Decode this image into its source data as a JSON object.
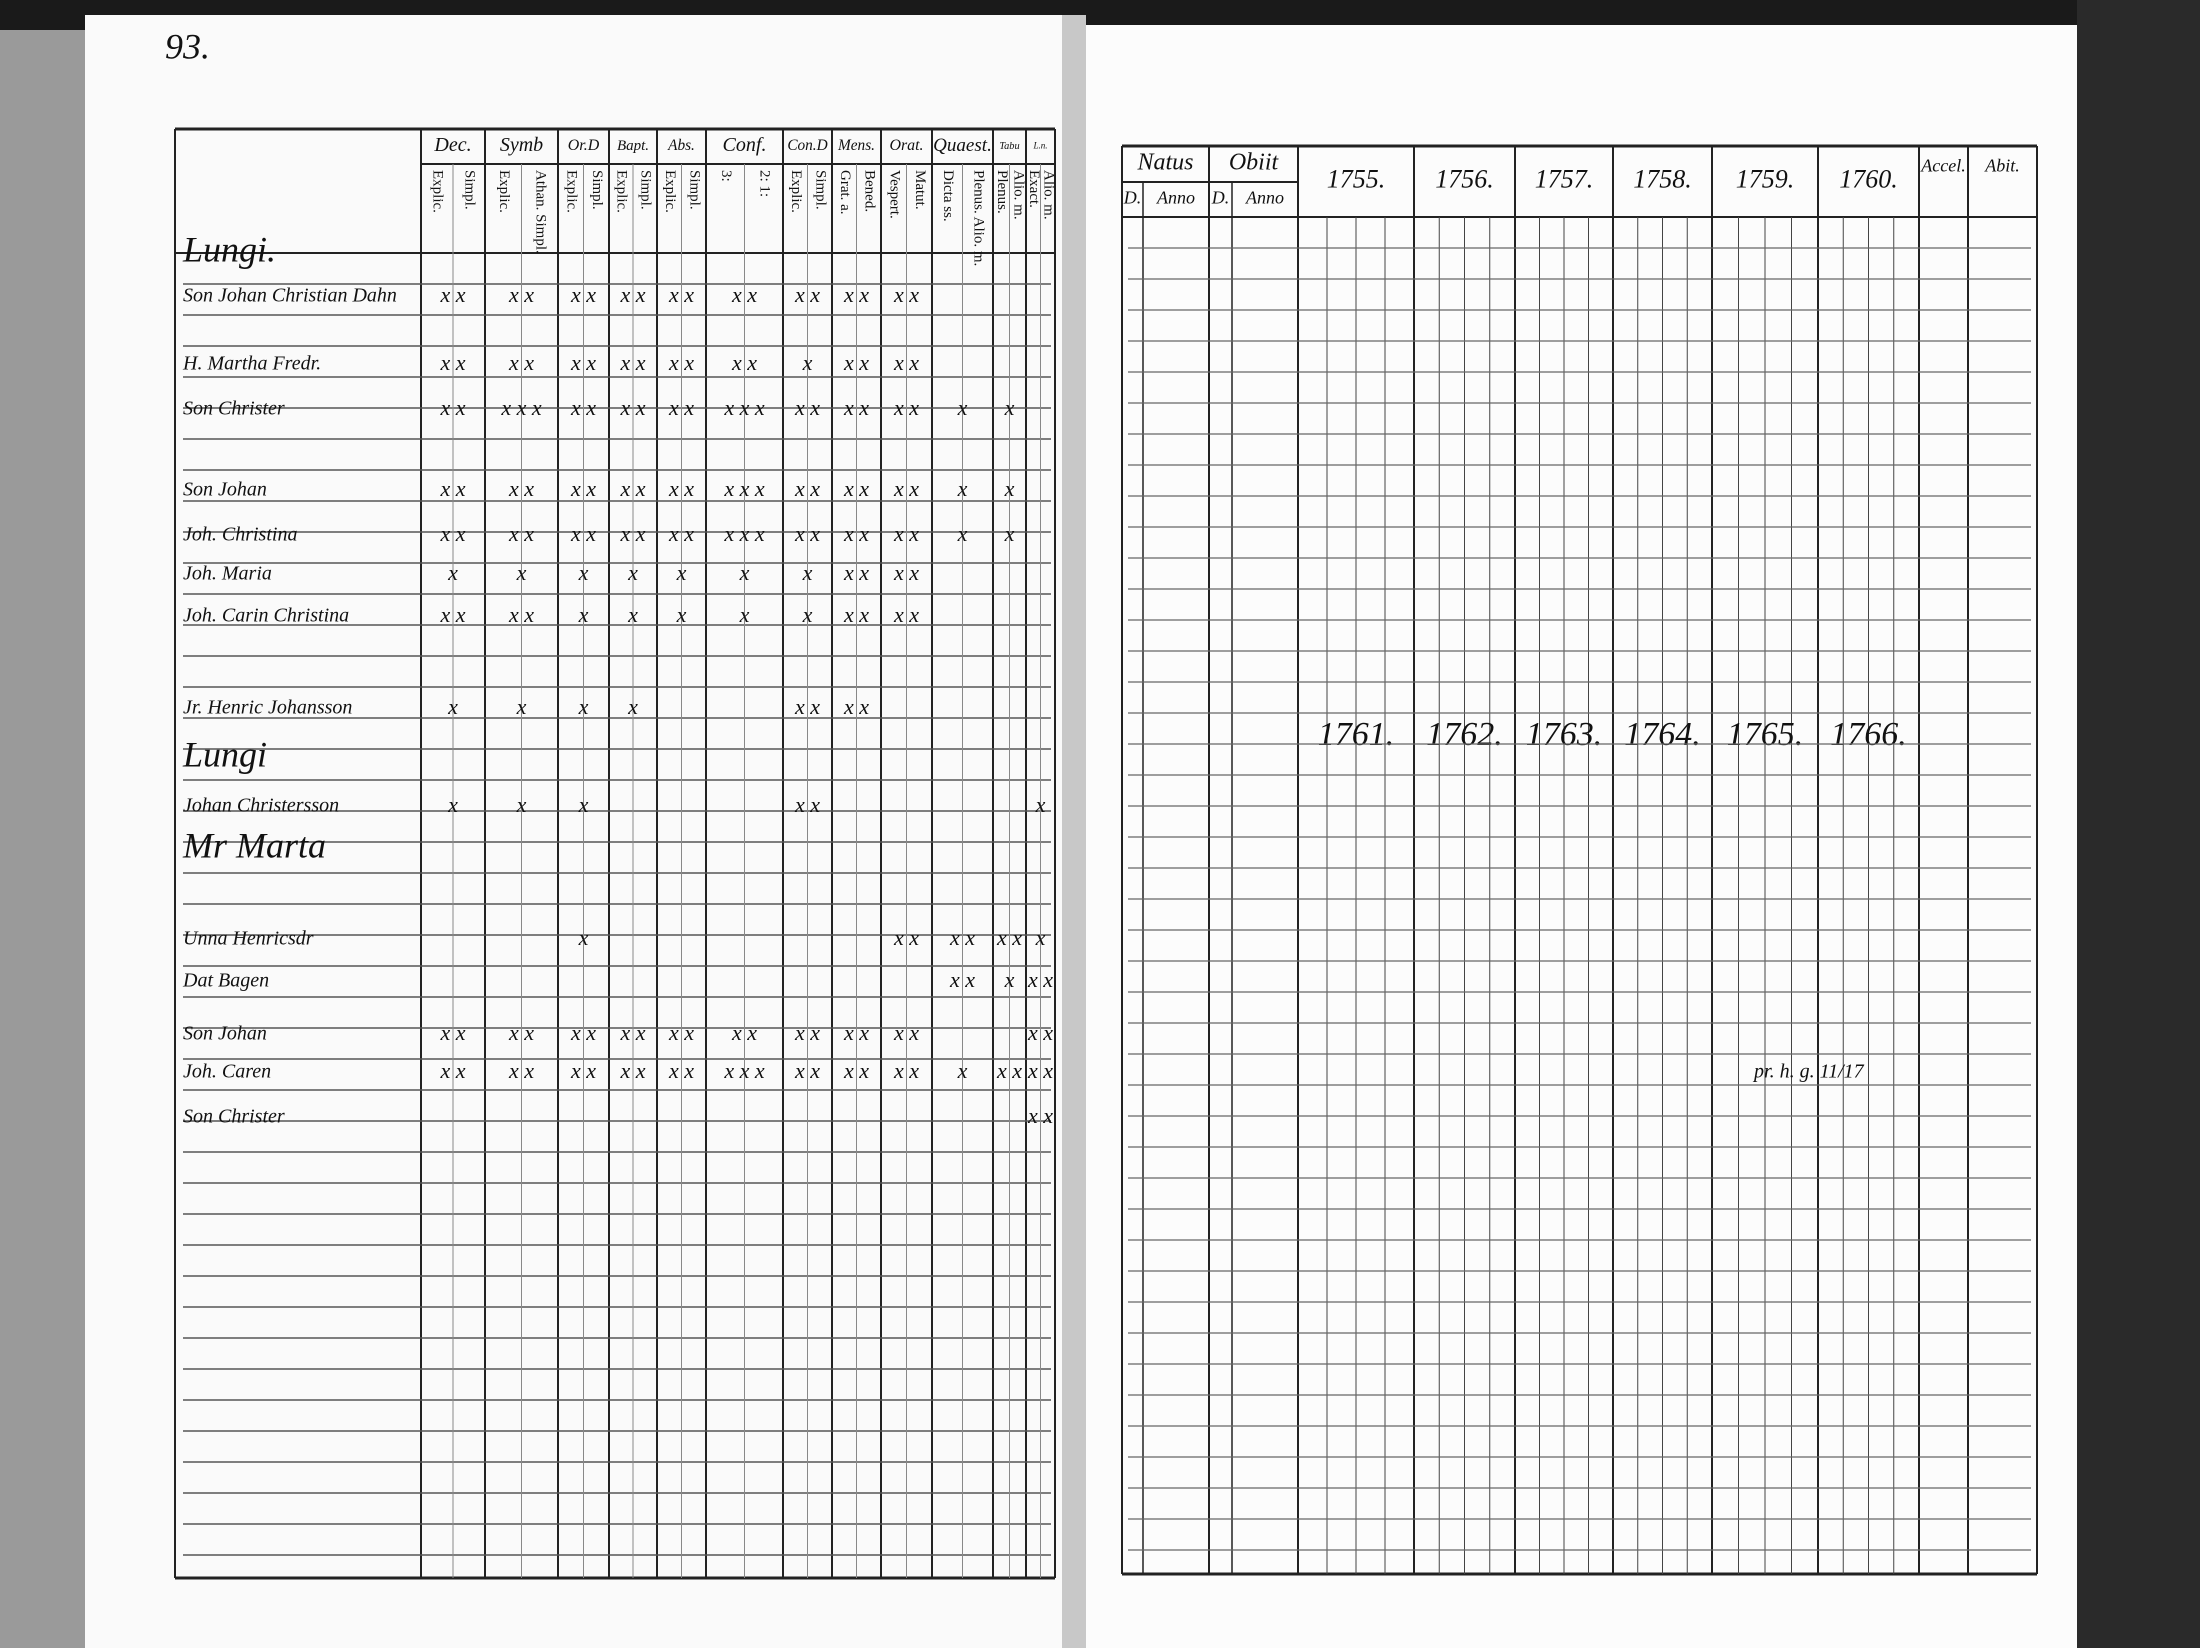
{
  "left_page": {
    "page_number": "93.",
    "headers": [
      {
        "label": "Dec.",
        "sub": [
          "Explic.",
          "Simpl."
        ]
      },
      {
        "label": "Symb",
        "sub": [
          "Explic.",
          "Athan. Simpl."
        ]
      },
      {
        "label": "Or.D",
        "sub": [
          "Explic.",
          "Simpl."
        ]
      },
      {
        "label": "Bapt.",
        "sub": [
          "Explic.",
          "Simpl."
        ]
      },
      {
        "label": "Abs.",
        "sub": [
          "Explic.",
          "Simpl."
        ]
      },
      {
        "label": "Conf.",
        "sub": [
          "3:",
          "2: 1:"
        ]
      },
      {
        "label": "Con.D",
        "sub": [
          "Explic.",
          "Simpl."
        ]
      },
      {
        "label": "Mens.",
        "sub": [
          "Grat. a.",
          "Bened."
        ]
      },
      {
        "label": "Orat.",
        "sub": [
          "Vespert.",
          "Matut."
        ]
      },
      {
        "label": "Quaest.",
        "sub": [
          "Dicta ss.",
          "Plenus. Alio. m."
        ]
      },
      {
        "label": "Tabu",
        "sub": [
          "Plenus.",
          "Alio. m."
        ]
      },
      {
        "label": "L.n.",
        "sub": [
          "Exact.",
          "Alio. m."
        ]
      }
    ],
    "rows": [
      {
        "name": "Lungi.",
        "marks": [
          null,
          null,
          null,
          null,
          null,
          null,
          null,
          null,
          null,
          null,
          null,
          null
        ]
      },
      {
        "name": "Son Johan Christian Dahn",
        "marks": [
          "x x",
          "x x",
          "x x",
          "x x",
          "x x",
          "x x",
          "x x",
          "x x",
          "x x",
          null,
          null,
          null
        ]
      },
      {
        "name": "H. Martha Fredr.",
        "marks": [
          "x x",
          "x x",
          "x x",
          "x x",
          "x x",
          "x x",
          "x",
          "x x",
          "x x",
          null,
          null,
          null
        ]
      },
      {
        "name": "Son Christer",
        "marks": [
          "x x",
          "x x x",
          "x x",
          "x x",
          "x x",
          "x x x",
          "x x",
          "x x",
          "x x",
          "x",
          "x",
          null
        ]
      },
      {
        "name": "Son Johan",
        "marks": [
          "x x",
          "x x",
          "x x",
          "x x",
          "x x",
          "x x x",
          "x x",
          "x x",
          "x x",
          "x",
          "x",
          null
        ]
      },
      {
        "name": "Joh. Christina",
        "marks": [
          "x x",
          "x x",
          "x x",
          "x x",
          "x x",
          "x x x",
          "x x",
          "x x",
          "x x",
          "x",
          "x",
          null
        ]
      },
      {
        "name": "Joh. Maria",
        "marks": [
          "x",
          "x",
          "x",
          "x",
          "x",
          "x",
          "x",
          "x x",
          "x x",
          null,
          null,
          null
        ]
      },
      {
        "name": "Joh. Carin Christina",
        "marks": [
          "x x",
          "x x",
          "x",
          "x",
          "x",
          "x",
          "x",
          "x x",
          "x x",
          null,
          null,
          null
        ]
      },
      {
        "name": "Jr. Henric Johansson",
        "marks": [
          "x",
          "x",
          "x",
          "x",
          null,
          null,
          "x x",
          "x x",
          null,
          null,
          null,
          null
        ]
      },
      {
        "name": "Lungi",
        "marks": [
          null,
          null,
          null,
          null,
          null,
          null,
          null,
          null,
          null,
          null,
          null,
          null
        ]
      },
      {
        "name": "Johan Christersson",
        "marks": [
          "x",
          "x",
          "x",
          null,
          null,
          null,
          "x x",
          null,
          null,
          null,
          null,
          "x"
        ]
      },
      {
        "name": "Mr Marta",
        "marks": [
          null,
          null,
          null,
          null,
          null,
          null,
          null,
          null,
          null,
          null,
          null,
          null
        ]
      },
      {
        "name": "Unna Henricsdr",
        "marks": [
          null,
          null,
          "x",
          null,
          null,
          null,
          null,
          null,
          "x x",
          "x x",
          "x x",
          "x"
        ]
      },
      {
        "name": "Dat Bagen",
        "marks": [
          null,
          null,
          null,
          null,
          null,
          null,
          null,
          null,
          null,
          "x x",
          "x",
          "x x"
        ]
      },
      {
        "name": "Son Johan",
        "marks": [
          "x x",
          "x x",
          "x x",
          "x x",
          "x x",
          "x x",
          "x x",
          "x x",
          "x x",
          null,
          null,
          "x x"
        ]
      },
      {
        "name": "Joh. Caren",
        "marks": [
          "x x",
          "x x",
          "x x",
          "x x",
          "x x",
          "x x x",
          "x x",
          "x x",
          "x x",
          "x",
          "x x",
          "x x"
        ]
      },
      {
        "name": "Son Christer",
        "marks": [
          null,
          null,
          null,
          null,
          null,
          null,
          null,
          null,
          null,
          null,
          null,
          "x x"
        ]
      }
    ]
  },
  "right_page": {
    "headers": [
      {
        "label": "Natus",
        "sub": [
          "D.",
          "Anno"
        ]
      },
      {
        "label": "Obiit",
        "sub": [
          "D.",
          "Anno"
        ]
      }
    ],
    "years": [
      "1755.",
      "1756.",
      "1757.",
      "1758.",
      "1759.",
      "1760."
    ],
    "extra_headers": [
      "Accel.",
      "Abit."
    ],
    "years_second": [
      "1761.",
      "1762.",
      "1763.",
      "1764.",
      "1765.",
      "1766."
    ],
    "notes": [
      "pr. h. g. 11/17"
    ]
  }
}
